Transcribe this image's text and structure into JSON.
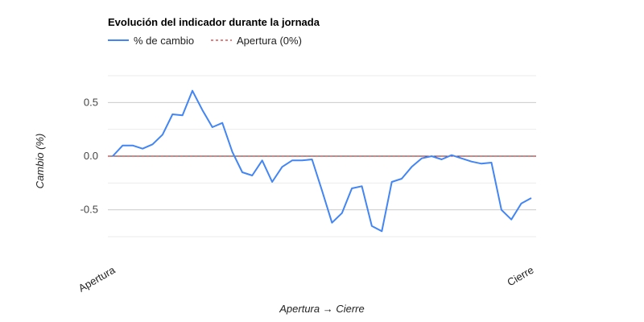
{
  "chart_data": {
    "type": "line",
    "title": "Evolución del indicador durante la jornada",
    "xlabel": "Apertura → Cierre",
    "ylabel": "Cambio (%)",
    "x_tick_labels": [
      "Apertura",
      "Cierre"
    ],
    "y_ticks": [
      -0.5,
      0.0,
      0.5
    ],
    "y_tick_labels": [
      "-0.5",
      "0.0",
      "0.5"
    ],
    "ylim": [
      -0.75,
      0.75
    ],
    "grid": true,
    "legend_position": "top-left",
    "series": [
      {
        "name": "% de cambio",
        "color": "#4285f4",
        "style": "solid",
        "values": [
          0.0,
          0.1,
          0.1,
          0.07,
          0.11,
          0.2,
          0.39,
          0.38,
          0.61,
          0.43,
          0.27,
          0.31,
          0.04,
          -0.15,
          -0.18,
          -0.04,
          -0.24,
          -0.1,
          -0.04,
          -0.04,
          -0.03,
          -0.32,
          -0.62,
          -0.53,
          -0.3,
          -0.28,
          -0.65,
          -0.7,
          -0.24,
          -0.21,
          -0.1,
          -0.02,
          0.0,
          -0.03,
          0.01,
          -0.02,
          -0.05,
          -0.07,
          -0.06,
          -0.5,
          -0.59,
          -0.44,
          -0.39
        ]
      },
      {
        "name": "Apertura (0%)",
        "color": "#cc0000",
        "style": "dashed",
        "values": [
          0.0,
          0.0
        ]
      }
    ]
  }
}
